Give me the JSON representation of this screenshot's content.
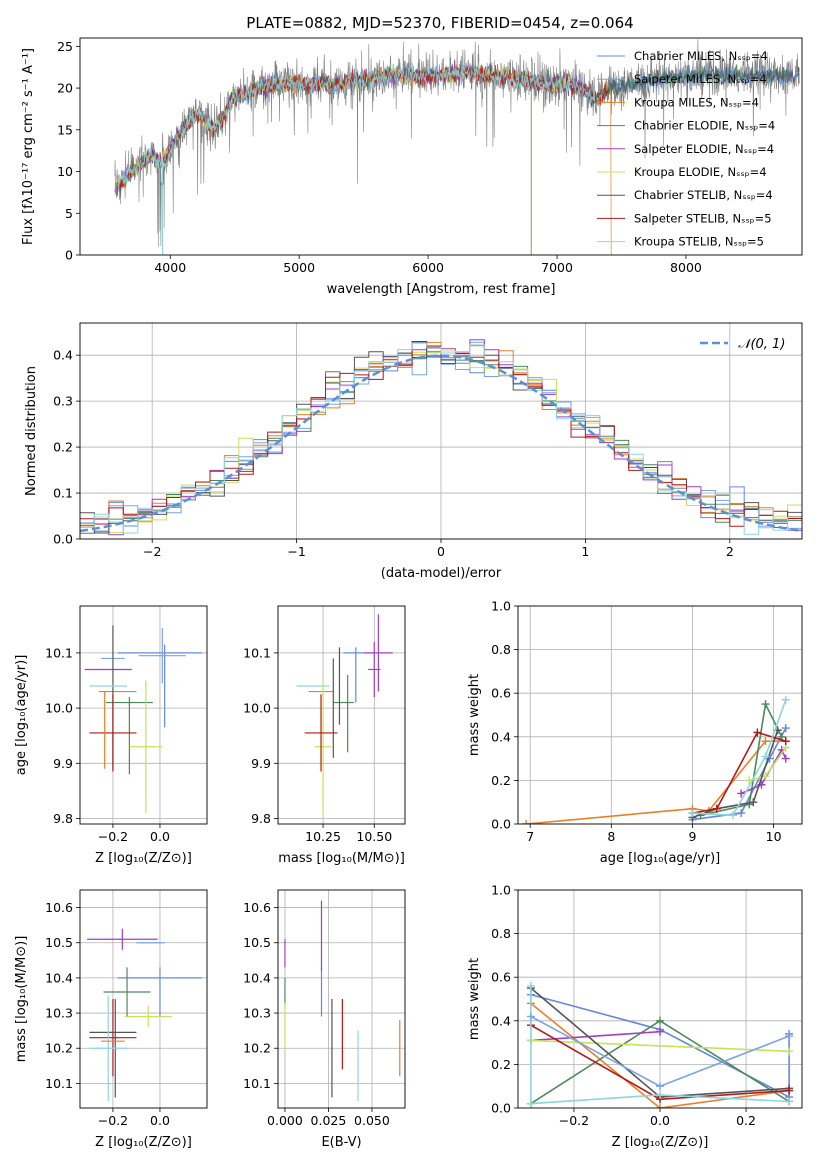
{
  "figure": {
    "title": "PLATE=0882, MJD=52370, FIBERID=0454, z=0.064"
  },
  "colors": {
    "series": [
      "#6488e0",
      "#7aa3e8",
      "#e87f2a",
      "#4c8a5c",
      "#a23fbf",
      "#c9e05a",
      "#555555",
      "#b51818",
      "#8ed6de"
    ],
    "data_spectrum": "#808080",
    "grid": "#b0b0b0",
    "gauss": "#5b8fd8"
  },
  "chart_data": [
    {
      "id": "spectrum",
      "type": "line",
      "xlabel": "wavelength [Angstrom, rest frame]",
      "ylabel": "Flux [fλ10⁻¹⁷ erg cm⁻² s⁻¹ A⁻¹]",
      "xlim": [
        3300,
        8900
      ],
      "ylim": [
        0,
        26
      ],
      "xticks": [
        "4000",
        "5000",
        "6000",
        "7000",
        "8000"
      ],
      "yticks": [
        "0",
        "5",
        "10",
        "15",
        "20",
        "25"
      ],
      "legend_position": "upper-right",
      "legend": [
        "Chabrier MILES, N_SSP=4",
        "Salpeter MILES, N_SSP=4",
        "Kroupa MILES, N_SSP=4",
        "Chabrier ELODIE, N_SSP=4",
        "Salpeter ELODIE, N_SSP=4",
        "Kroupa ELODIE, N_SSP=4",
        "Chabrier STELIB, N_SSP=4",
        "Salpeter STELIB, N_SSP=5",
        "Kroupa STELIB, N_SSP=5"
      ],
      "continuum": {
        "x": [
          3570,
          3700,
          3850,
          3950,
          4050,
          4200,
          4350,
          4500,
          4700,
          4900,
          5100,
          5300,
          5500,
          5700,
          5900,
          6100,
          6300,
          6500,
          6700,
          6900,
          7100,
          7200,
          7300,
          7400,
          7600,
          7800,
          8000,
          8200,
          8400,
          8600,
          8800
        ],
        "y": [
          8,
          10,
          12,
          11,
          14,
          17,
          15,
          19,
          20,
          20.5,
          20.5,
          20.5,
          21,
          21.5,
          21.5,
          21.5,
          22,
          21.5,
          21,
          20.5,
          20.5,
          20,
          18.5,
          20,
          20.5,
          21,
          21.5,
          21.5,
          21.5,
          21.5,
          21.5
        ]
      }
    },
    {
      "id": "residual-histogram",
      "type": "bar",
      "xlabel": "(data-model)/error",
      "ylabel": "Normed distribution",
      "xlim": [
        -2.5,
        2.5
      ],
      "ylim": [
        0,
        0.47
      ],
      "xticks": [
        "−2",
        "−1",
        "0",
        "1",
        "2"
      ],
      "yticks": [
        "0.0",
        "0.1",
        "0.2",
        "0.3",
        "0.4"
      ],
      "legend_position": "upper-right",
      "legend": [
        "𝒩(0, 1)"
      ],
      "bin_width": 0.1,
      "mean_curve": "normal(0,1)"
    },
    {
      "id": "age-vs-Z",
      "type": "scatter",
      "xlabel": "Z [log₁₀(Z/Z⊙)]",
      "ylabel": "age  [log₁₀(age/yr)]",
      "xlim": [
        -0.34,
        0.2
      ],
      "ylim": [
        9.79,
        10.185
      ],
      "xticks": [
        "−0.2",
        "0.0"
      ],
      "yticks": [
        "9.8",
        "9.9",
        "10.0",
        "10.1"
      ],
      "points": [
        {
          "x": 0.0,
          "y": 10.1,
          "xerr": 0.18,
          "yerr": 0.0,
          "c": 0
        },
        {
          "x": 0.02,
          "y": 10.04,
          "xerr": 0.0,
          "yerr": 0.075,
          "c": 0
        },
        {
          "x": -0.2,
          "y": 10.09,
          "xerr": 0.05,
          "yerr": 0.0,
          "c": 1
        },
        {
          "x": -0.18,
          "y": 10.03,
          "xerr": 0.08,
          "yerr": 0.0,
          "c": 2
        },
        {
          "x": -0.13,
          "y": 10.01,
          "xerr": 0.1,
          "yerr": 0.0,
          "c": 3
        },
        {
          "x": -0.13,
          "y": 9.95,
          "xerr": 0.0,
          "yerr": 0.07,
          "c": 3
        },
        {
          "x": -0.22,
          "y": 10.07,
          "xerr": 0.1,
          "yerr": 0.0,
          "c": 4
        },
        {
          "x": -0.06,
          "y": 9.93,
          "xerr": 0.07,
          "yerr": 0.12,
          "c": 5
        },
        {
          "x": -0.2,
          "y": 10.02,
          "xerr": 0.0,
          "yerr": 0.13,
          "c": 6
        },
        {
          "x": -0.2,
          "y": 9.955,
          "xerr": 0.1,
          "yerr": 0.07,
          "c": 7
        },
        {
          "x": -0.22,
          "y": 10.04,
          "xerr": 0.08,
          "yerr": 0.0,
          "c": 8
        },
        {
          "x": 0.01,
          "y": 10.095,
          "xerr": 0.1,
          "yerr": 0.05,
          "c": 1
        },
        {
          "x": -0.235,
          "y": 9.96,
          "xerr": 0.0,
          "yerr": 0.07,
          "c": 2
        }
      ]
    },
    {
      "id": "age-vs-mass",
      "type": "scatter",
      "xlabel": "mass [log₁₀(M/M⊙)]",
      "ylabel": "",
      "xlim": [
        10.03,
        10.65
      ],
      "ylim": [
        9.79,
        10.185
      ],
      "xticks": [
        "10.25",
        "10.50"
      ],
      "yticks": [
        "9.8",
        "9.9",
        "10.0",
        "10.1"
      ],
      "points": [
        {
          "x": 10.4,
          "y": 10.1,
          "xerr": 0.05,
          "yerr": 0.0,
          "c": 0
        },
        {
          "x": 10.41,
          "y": 10.06,
          "xerr": 0.0,
          "yerr": 0.05,
          "c": 0
        },
        {
          "x": 10.52,
          "y": 10.1,
          "xerr": 0.07,
          "yerr": 0.07,
          "c": 4
        },
        {
          "x": 10.24,
          "y": 10.03,
          "xerr": 0.06,
          "yerr": 0.0,
          "c": 2
        },
        {
          "x": 10.35,
          "y": 10.01,
          "xerr": 0.05,
          "yerr": 0.0,
          "c": 3
        },
        {
          "x": 10.37,
          "y": 9.99,
          "xerr": 0.0,
          "yerr": 0.07,
          "c": 3
        },
        {
          "x": 10.5,
          "y": 10.07,
          "xerr": 0.03,
          "yerr": 0.05,
          "c": 4
        },
        {
          "x": 10.25,
          "y": 9.93,
          "xerr": 0.04,
          "yerr": 0.12,
          "c": 5
        },
        {
          "x": 10.3,
          "y": 10.0,
          "xerr": 0.0,
          "yerr": 0.09,
          "c": 6
        },
        {
          "x": 10.24,
          "y": 9.955,
          "xerr": 0.08,
          "yerr": 0.07,
          "c": 7
        },
        {
          "x": 10.2,
          "y": 10.04,
          "xerr": 0.08,
          "yerr": 0.0,
          "c": 8
        },
        {
          "x": 10.33,
          "y": 10.04,
          "xerr": 0.0,
          "yerr": 0.07,
          "c": 6
        }
      ]
    },
    {
      "id": "massweight-vs-age",
      "type": "line",
      "xlabel": "age  [log₁₀(age/yr)]",
      "ylabel": "mass weight",
      "xlim": [
        6.85,
        10.35
      ],
      "ylim": [
        0,
        1.0
      ],
      "xticks": [
        "7",
        "8",
        "9",
        "10"
      ],
      "yticks": [
        "0.0",
        "0.2",
        "0.4",
        "0.6",
        "0.8",
        "1.0"
      ],
      "series": [
        {
          "c": 0,
          "x": [
            9.0,
            9.6,
            9.95,
            10.15
          ],
          "y": [
            0.02,
            0.05,
            0.3,
            0.44
          ]
        },
        {
          "c": 2,
          "x": [
            6.95,
            9.0,
            9.2,
            9.9,
            10.15
          ],
          "y": [
            0.0,
            0.07,
            0.06,
            0.38,
            0.38
          ]
        },
        {
          "c": 3,
          "x": [
            9.1,
            9.7,
            9.9,
            10.1
          ],
          "y": [
            0.04,
            0.09,
            0.55,
            0.4
          ]
        },
        {
          "c": 4,
          "x": [
            9.6,
            9.85,
            10.1,
            10.15
          ],
          "y": [
            0.14,
            0.18,
            0.34,
            0.3
          ]
        },
        {
          "c": 5,
          "x": [
            9.7,
            9.9,
            10.15
          ],
          "y": [
            0.2,
            0.22,
            0.35
          ]
        },
        {
          "c": 6,
          "x": [
            9.0,
            9.3,
            9.75,
            10.05
          ],
          "y": [
            0.03,
            0.07,
            0.1,
            0.43
          ]
        },
        {
          "c": 7,
          "x": [
            9.0,
            9.3,
            9.8,
            10.15
          ],
          "y": [
            0.05,
            0.07,
            0.42,
            0.38
          ]
        },
        {
          "c": 8,
          "x": [
            9.0,
            9.5,
            9.9,
            10.15
          ],
          "y": [
            0.05,
            0.04,
            0.31,
            0.57
          ]
        }
      ]
    },
    {
      "id": "mass-vs-Z",
      "type": "scatter",
      "xlabel": "Z [log₁₀(Z/Z⊙)]",
      "ylabel": "mass [log₁₀(M/M⊙)]",
      "xlim": [
        -0.34,
        0.2
      ],
      "ylim": [
        10.03,
        10.65
      ],
      "xticks": [
        "−0.2",
        "0.0"
      ],
      "yticks": [
        "10.1",
        "10.2",
        "10.3",
        "10.4",
        "10.5",
        "10.6"
      ],
      "points": [
        {
          "x": 0.0,
          "y": 10.4,
          "xerr": 0.18,
          "yerr": 0.0,
          "c": 0
        },
        {
          "x": 0.0,
          "y": 10.36,
          "xerr": 0.0,
          "yerr": 0.07,
          "c": 0
        },
        {
          "x": -0.16,
          "y": 10.51,
          "xerr": 0.15,
          "yerr": 0.03,
          "c": 4
        },
        {
          "x": -0.14,
          "y": 10.36,
          "xerr": 0.1,
          "yerr": 0.07,
          "c": 3
        },
        {
          "x": -0.05,
          "y": 10.29,
          "xerr": 0.1,
          "yerr": 0.03,
          "c": 5
        },
        {
          "x": -0.2,
          "y": 10.245,
          "xerr": 0.1,
          "yerr": 0.0,
          "c": 6
        },
        {
          "x": -0.19,
          "y": 10.2,
          "xerr": 0.0,
          "yerr": 0.14,
          "c": 6
        },
        {
          "x": -0.2,
          "y": 10.23,
          "xerr": 0.1,
          "yerr": 0.11,
          "c": 7
        },
        {
          "x": -0.22,
          "y": 10.2,
          "xerr": 0.08,
          "yerr": 0.15,
          "c": 8
        },
        {
          "x": -0.04,
          "y": 10.5,
          "xerr": 0.06,
          "yerr": 0.0,
          "c": 1
        },
        {
          "x": -0.2,
          "y": 10.22,
          "xerr": 0.05,
          "yerr": 0.0,
          "c": 2
        }
      ]
    },
    {
      "id": "mass-vs-EBV",
      "type": "scatter",
      "xlabel": "E(B-V)",
      "ylabel": "",
      "xlim": [
        -0.004,
        0.069
      ],
      "ylim": [
        10.03,
        10.65
      ],
      "xticks": [
        "0.000",
        "0.025",
        "0.050"
      ],
      "yticks": [
        "10.1",
        "10.2",
        "10.3",
        "10.4",
        "10.5",
        "10.6"
      ],
      "points": [
        {
          "x": 0.0,
          "y": 10.47,
          "xerr": 0.0,
          "yerr": 0.04,
          "c": 4
        },
        {
          "x": 0.0,
          "y": 10.36,
          "xerr": 0.0,
          "yerr": 0.04,
          "c": 3
        },
        {
          "x": 0.0,
          "y": 10.26,
          "xerr": 0.0,
          "yerr": 0.07,
          "c": 5
        },
        {
          "x": 0.021,
          "y": 10.36,
          "xerr": 0.0,
          "yerr": 0.07,
          "c": 0
        },
        {
          "x": 0.021,
          "y": 10.52,
          "xerr": 0.0,
          "yerr": 0.1,
          "c": 4
        },
        {
          "x": 0.027,
          "y": 10.2,
          "xerr": 0.0,
          "yerr": 0.14,
          "c": 6
        },
        {
          "x": 0.033,
          "y": 10.24,
          "xerr": 0.0,
          "yerr": 0.1,
          "c": 7
        },
        {
          "x": 0.042,
          "y": 10.15,
          "xerr": 0.0,
          "yerr": 0.1,
          "c": 8
        },
        {
          "x": 0.066,
          "y": 10.2,
          "xerr": 0.0,
          "yerr": 0.08,
          "c": 2
        }
      ]
    },
    {
      "id": "massweight-vs-Z",
      "type": "line",
      "xlabel": "Z [log₁₀(Z/Z⊙)]",
      "ylabel": "mass weight",
      "xlim": [
        -0.33,
        0.33
      ],
      "ylim": [
        0,
        1.0
      ],
      "xticks": [
        "−0.2",
        "0.0",
        "0.2"
      ],
      "yticks": [
        "0.0",
        "0.2",
        "0.4",
        "0.6",
        "0.8",
        "1.0"
      ],
      "series": [
        {
          "c": 0,
          "x": [
            -0.3,
            0.0,
            0.3,
            0.3
          ],
          "y": [
            0.52,
            0.36,
            0.05,
            0.34
          ]
        },
        {
          "c": 2,
          "x": [
            -0.3,
            0.0,
            0.3
          ],
          "y": [
            0.48,
            0.0,
            0.08
          ]
        },
        {
          "c": 3,
          "x": [
            -0.3,
            0.0,
            0.3
          ],
          "y": [
            0.02,
            0.4,
            0.03
          ]
        },
        {
          "c": 4,
          "x": [
            -0.3,
            0.0
          ],
          "y": [
            0.31,
            0.35
          ]
        },
        {
          "c": 5,
          "x": [
            -0.3,
            0.3
          ],
          "y": [
            0.31,
            0.26
          ]
        },
        {
          "c": 6,
          "x": [
            -0.3,
            0.0,
            0.3
          ],
          "y": [
            0.55,
            0.05,
            0.09
          ]
        },
        {
          "c": 7,
          "x": [
            -0.3,
            0.0,
            0.3
          ],
          "y": [
            0.38,
            0.04,
            0.08
          ]
        },
        {
          "c": 8,
          "x": [
            -0.3,
            -0.3,
            0.0,
            0.3
          ],
          "y": [
            0.56,
            0.02,
            0.06,
            0.03
          ]
        },
        {
          "c": 1,
          "x": [
            -0.3,
            0.0,
            0.3
          ],
          "y": [
            0.42,
            0.1,
            0.33
          ]
        }
      ]
    }
  ]
}
